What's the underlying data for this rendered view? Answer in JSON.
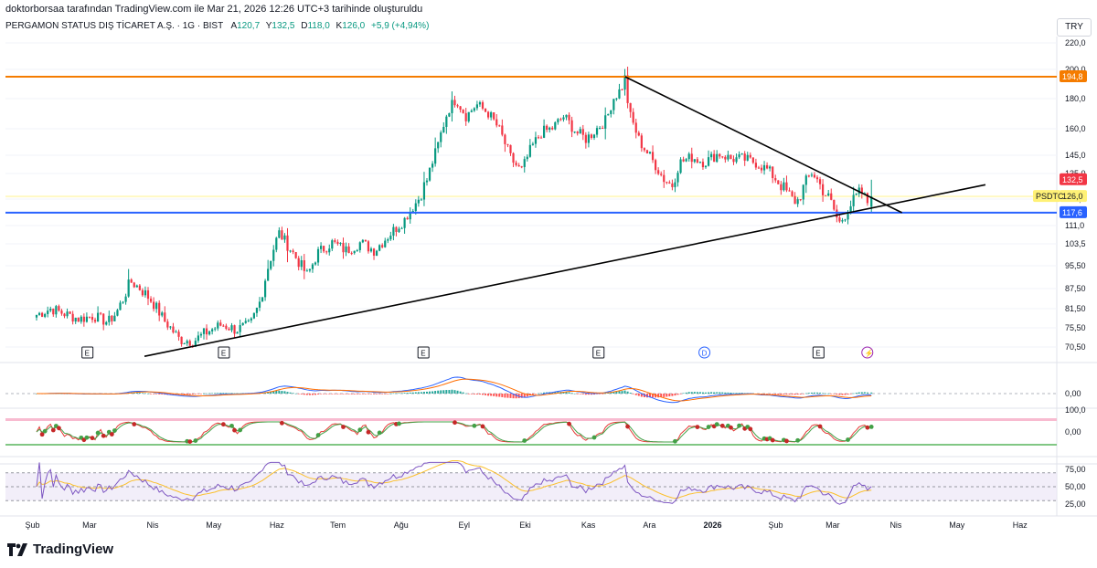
{
  "header": {
    "caption": "doktorborsaa tarafından TradingView.com ile Mar 21, 2026 12:26 UTC+3 tarihinde oluşturuldu",
    "symbol": "PERGAMON STATUS DIŞ TİCARET A.Ş. · 1G · BIST",
    "ohlc": [
      {
        "k": "A",
        "v": "120,7"
      },
      {
        "k": "Y",
        "v": "132,5"
      },
      {
        "k": "D",
        "v": "118,0"
      },
      {
        "k": "K",
        "v": "126,0"
      }
    ],
    "change": "+5,9 (+4,94%)",
    "currency": "TRY"
  },
  "brand": {
    "name": "TradingView"
  },
  "colors": {
    "up": "#089981",
    "down": "#f23645",
    "resistance": "#f57c00",
    "support": "#2962ff",
    "trendline": "#000000",
    "macd": "#2962ff",
    "signal": "#ff6d00",
    "rsi": "#7e57c2",
    "rsi_ma": "#fbc02d"
  },
  "chart_data": [
    {
      "type": "candlestick",
      "name": "price",
      "ylim": [
        68,
        222
      ],
      "price_ticks": [
        "220,0",
        "200,0",
        "180,0",
        "160,0",
        "145,0",
        "135,0",
        "125,0",
        "111,0",
        "103,5",
        "95,50",
        "87,50",
        "81,50",
        "75,50",
        "70,50"
      ],
      "x_labels": [
        "Şub",
        "Mar",
        "Nis",
        "May",
        "Haz",
        "Tem",
        "Ağu",
        "Eyl",
        "Eki",
        "Kas",
        "Ara",
        "2026",
        "Şub",
        "Mar",
        "Nis",
        "May",
        "Haz"
      ],
      "close_path": [
        [
          "2025-02-03",
          79.5
        ],
        [
          "2025-02-10",
          81.5
        ],
        [
          "2025-02-17",
          79.8
        ],
        [
          "2025-02-24",
          78.2
        ],
        [
          "2025-03-03",
          79.2
        ],
        [
          "2025-03-10",
          77.2
        ],
        [
          "2025-03-14",
          80
        ],
        [
          "2025-03-18",
          85
        ],
        [
          "2025-03-21",
          90
        ],
        [
          "2025-03-26",
          87.5
        ],
        [
          "2025-04-01",
          83.5
        ],
        [
          "2025-04-07",
          77.5
        ],
        [
          "2025-04-14",
          72.5
        ],
        [
          "2025-04-21",
          72
        ],
        [
          "2025-04-28",
          74.5
        ],
        [
          "2025-05-05",
          76.5
        ],
        [
          "2025-05-12",
          75
        ],
        [
          "2025-05-19",
          76.5
        ],
        [
          "2025-05-24",
          84
        ],
        [
          "2025-05-28",
          96
        ],
        [
          "2025-06-02",
          108
        ],
        [
          "2025-06-09",
          100
        ],
        [
          "2025-06-16",
          92
        ],
        [
          "2025-06-21",
          100
        ],
        [
          "2025-06-28",
          104
        ],
        [
          "2025-07-05",
          101
        ],
        [
          "2025-07-12",
          104
        ],
        [
          "2025-07-19",
          101
        ],
        [
          "2025-07-26",
          107
        ],
        [
          "2025-08-02",
          113
        ],
        [
          "2025-08-09",
          124
        ],
        [
          "2025-08-14",
          133
        ],
        [
          "2025-08-19",
          150
        ],
        [
          "2025-08-24",
          172
        ],
        [
          "2025-08-28",
          180
        ],
        [
          "2025-09-02",
          168
        ],
        [
          "2025-09-07",
          176
        ],
        [
          "2025-09-13",
          170
        ],
        [
          "2025-09-18",
          160
        ],
        [
          "2025-09-24",
          143
        ],
        [
          "2025-09-29",
          136
        ],
        [
          "2025-10-04",
          149
        ],
        [
          "2025-10-09",
          158
        ],
        [
          "2025-10-14",
          160
        ],
        [
          "2025-10-20",
          168
        ],
        [
          "2025-10-26",
          158
        ],
        [
          "2025-10-31",
          154
        ],
        [
          "2025-11-05",
          160
        ],
        [
          "2025-11-10",
          166
        ],
        [
          "2025-11-13",
          180
        ],
        [
          "2025-11-17",
          186
        ],
        [
          "2025-11-19",
          194
        ],
        [
          "2025-11-21",
          170
        ],
        [
          "2025-11-26",
          153
        ],
        [
          "2025-12-02",
          143
        ],
        [
          "2025-12-07",
          134
        ],
        [
          "2025-12-12",
          130
        ],
        [
          "2025-12-16",
          141
        ],
        [
          "2025-12-22",
          144
        ],
        [
          "2025-12-28",
          141
        ],
        [
          "2026-01-04",
          146
        ],
        [
          "2026-01-10",
          143
        ],
        [
          "2026-01-16",
          143
        ],
        [
          "2026-01-22",
          141
        ],
        [
          "2026-01-28",
          137
        ],
        [
          "2026-02-02",
          132
        ],
        [
          "2026-02-07",
          127
        ],
        [
          "2026-02-11",
          123
        ],
        [
          "2026-02-15",
          130
        ],
        [
          "2026-02-19",
          136
        ],
        [
          "2026-02-23",
          130
        ],
        [
          "2026-02-28",
          124
        ],
        [
          "2026-03-04",
          112
        ],
        [
          "2026-03-07",
          116
        ],
        [
          "2026-03-11",
          124
        ],
        [
          "2026-03-15",
          128
        ],
        [
          "2026-03-18",
          123
        ],
        [
          "2026-03-20",
          126
        ]
      ],
      "last": {
        "open": 120.7,
        "high": 132.5,
        "low": 118.0,
        "close": 126.0
      },
      "lines": [
        {
          "name": "resistance",
          "kind": "horizontal",
          "value": 194.8,
          "label": "194,8"
        },
        {
          "name": "support",
          "kind": "horizontal",
          "value": 117.6,
          "label": "117,6"
        },
        {
          "name": "upper-trendline",
          "kind": "segment",
          "points": [
            [
              "2025-11-19",
              194.8
            ],
            [
              "2026-04-04",
              117.6
            ]
          ]
        },
        {
          "name": "lower-trendline",
          "kind": "segment",
          "points": [
            [
              "2025-03-28",
              68.2
            ],
            [
              "2026-05-15",
              130.5
            ]
          ]
        }
      ],
      "price_badges": [
        {
          "name": "resistance",
          "label": "194,8"
        },
        {
          "name": "high",
          "label": "132,5"
        },
        {
          "name": "last",
          "label": "126,0"
        },
        {
          "name": "support",
          "label": "117,6"
        }
      ],
      "symbol_tag": "PSDTC",
      "event_markers": [
        {
          "date": "2025-02-28",
          "label": "E",
          "kind": "earnings"
        },
        {
          "date": "2025-05-06",
          "label": "E",
          "kind": "earnings"
        },
        {
          "date": "2025-08-12",
          "label": "E",
          "kind": "earnings"
        },
        {
          "date": "2025-11-06",
          "label": "E",
          "kind": "earnings"
        },
        {
          "date": "2025-12-28",
          "label": "D",
          "kind": "dividend"
        },
        {
          "date": "2026-02-22",
          "label": "E",
          "kind": "earnings"
        },
        {
          "date": "2026-03-18",
          "label": "⚡",
          "kind": "split"
        }
      ]
    },
    {
      "type": "macd",
      "name": "macd",
      "tick_labels": [
        "0,00"
      ],
      "series": [
        {
          "name": "MACD"
        },
        {
          "name": "Signal"
        },
        {
          "name": "Histogram"
        }
      ]
    },
    {
      "type": "oscillator",
      "name": "stochastic",
      "tick_labels": [
        "100,0",
        "0,00"
      ]
    },
    {
      "type": "line",
      "name": "rsi",
      "tick_labels": [
        "75,00",
        "50,00",
        "25,00"
      ],
      "bands": [
        30,
        70
      ],
      "ylim": [
        20,
        80
      ]
    }
  ]
}
